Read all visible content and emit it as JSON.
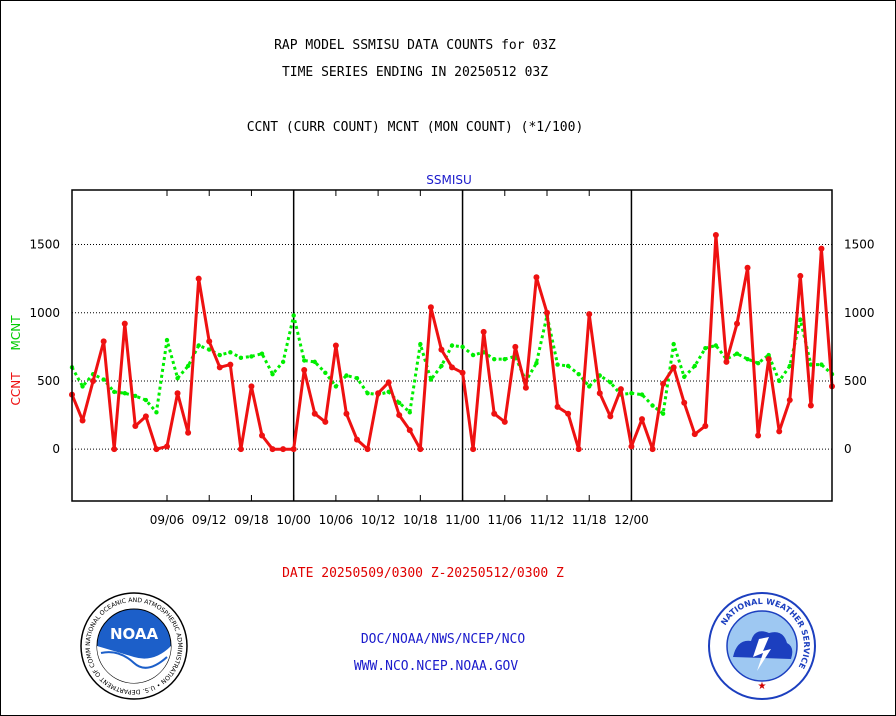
{
  "header": {
    "title_line1": "RAP MODEL SSMISU DATA COUNTS for 03Z",
    "title_line2": "TIME SERIES ENDING IN 20250512 03Z",
    "title_line3": "CCNT (CURR COUNT) MCNT (MON COUNT) (*1/100)"
  },
  "footer": {
    "date_range": "DATE 20250509/0300 Z-20250512/0300 Z",
    "org_line": "DOC/NOAA/NWS/NCEP/NCO",
    "url_line": "WWW.NCO.NCEP.NOAA.GOV",
    "left_logo": "NOAA",
    "left_logo_ring": "NATIONAL OCEANIC AND ATMOSPHERIC ADMINISTRATION • U.S. DEPARTMENT OF COMMERCE",
    "right_logo_ring": "NATIONAL WEATHER SERVICE"
  },
  "chart_data": {
    "type": "line",
    "title": "SSMISU",
    "ylabel_left_ccnt": "CCNT",
    "ylabel_left_mcnt": "MCNT",
    "ylim": [
      -380,
      1900
    ],
    "yticks": [
      0,
      500,
      1000,
      1500
    ],
    "grid": "horizontal dotted",
    "x_ticks": [
      "09/06",
      "09/12",
      "09/18",
      "10/00",
      "10/06",
      "10/12",
      "10/18",
      "11/00",
      "11/06",
      "11/12",
      "11/18",
      "12/00"
    ],
    "day_boundaries": [
      "10/00",
      "11/00",
      "12/00"
    ],
    "colors": {
      "ccnt": "#ee1111",
      "mcnt": "#00ee00",
      "title": "#1a1acc"
    },
    "series": [
      {
        "name": "CCNT",
        "style": "solid",
        "values": [
          400,
          210,
          500,
          790,
          0,
          920,
          170,
          240,
          0,
          20,
          410,
          120,
          1250,
          790,
          600,
          620,
          0,
          460,
          100,
          0,
          0,
          0,
          580,
          260,
          200,
          760,
          260,
          70,
          0,
          410,
          490,
          250,
          140,
          0,
          1040,
          730,
          600,
          560,
          0,
          860,
          260,
          200,
          750,
          450,
          1260,
          1000,
          310,
          260,
          0,
          990,
          410,
          240,
          440,
          20,
          220,
          0,
          480,
          600,
          340,
          110,
          170,
          1570,
          640,
          920,
          1330,
          100,
          660,
          130,
          360,
          1270,
          320,
          1470,
          460
        ]
      },
      {
        "name": "MCNT",
        "style": "dotted",
        "values": [
          600,
          460,
          550,
          510,
          420,
          410,
          390,
          360,
          270,
          800,
          520,
          610,
          760,
          730,
          690,
          710,
          670,
          680,
          700,
          550,
          640,
          980,
          650,
          640,
          560,
          460,
          540,
          520,
          410,
          400,
          420,
          340,
          270,
          770,
          510,
          610,
          760,
          750,
          690,
          710,
          660,
          660,
          680,
          500,
          630,
          980,
          620,
          610,
          550,
          460,
          540,
          490,
          400,
          410,
          400,
          320,
          260,
          770,
          530,
          610,
          740,
          760,
          660,
          700,
          660,
          630,
          690,
          500,
          610,
          950,
          620,
          620,
          550
        ]
      }
    ]
  }
}
